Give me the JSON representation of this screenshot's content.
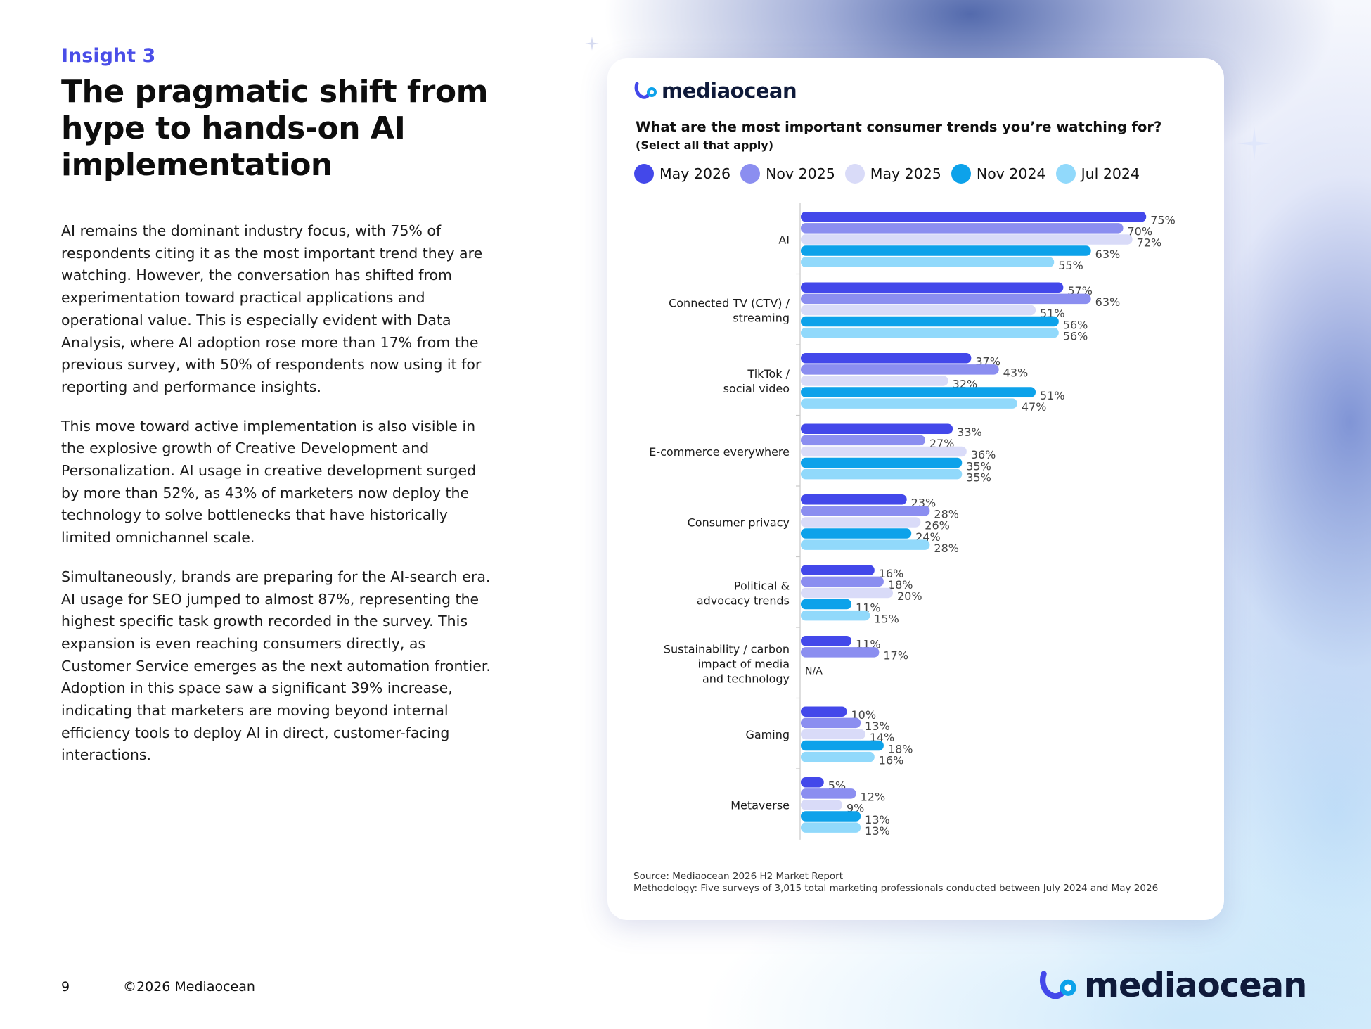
{
  "page": {
    "insight_label": "Insight 3",
    "headline": "The pragmatic shift from hype to hands-on AI implementation",
    "paragraphs": [
      "AI remains the dominant industry focus, with 75% of respondents citing it as the most important trend they are watching. However, the conversation has shifted from experimentation toward practical applications and operational value. This is especially evident with Data Analysis, where AI adoption rose more than 17% from the previous survey, with 50% of respondents now using it for reporting and performance insights.",
      "This move toward active implementation is also visible in the explosive growth of Creative Development and Personalization. AI usage in creative development surged by more than 52%, as 43% of marketers now deploy the technology to solve bottlenecks that have historically limited omnichannel scale.",
      "Simultaneously, brands are preparing for the AI-search era. AI usage for SEO jumped to almost 87%, representing the highest specific task growth recorded in the survey. This expansion is even reaching consumers directly, as Customer Service emerges as the next automation frontier. Adoption in this space saw a significant 39% increase, indicating that marketers are moving beyond internal efficiency tools to deploy AI in direct, customer-facing interactions."
    ],
    "page_number": "9",
    "copyright": "©2026 Mediaocean",
    "brand": "mediaocean"
  },
  "colors": {
    "may2026": "#4348ea",
    "nov2025": "#8b8ef0",
    "may2025": "#d9dbf8",
    "nov2024": "#0da2ea",
    "jul2024": "#91d9fb"
  },
  "chart_data": {
    "type": "bar",
    "orientation": "horizontal",
    "brand": "mediaocean",
    "title": "What are the most important consumer trends you’re watching for?",
    "subtitle": "(Select all that apply)",
    "categories": [
      "AI",
      "Connected TV (CTV) / streaming",
      "TikTok / social video",
      "E-commerce everywhere",
      "Consumer privacy",
      "Political & advocacy trends",
      "Sustainability / carbon impact of media and technology",
      "Gaming",
      "Metaverse"
    ],
    "category_lines": [
      [
        "AI"
      ],
      [
        "Connected TV (CTV) /",
        "streaming"
      ],
      [
        "TikTok /",
        "social video"
      ],
      [
        "E-commerce everywhere"
      ],
      [
        "Consumer privacy"
      ],
      [
        "Political &",
        "advocacy trends"
      ],
      [
        "Sustainability / carbon",
        "impact of media",
        "and technology"
      ],
      [
        "Gaming"
      ],
      [
        "Metaverse"
      ]
    ],
    "series": [
      {
        "name": "May 2026",
        "color": "#4348ea",
        "values": [
          75,
          57,
          37,
          33,
          23,
          16,
          11,
          10,
          5
        ]
      },
      {
        "name": "Nov 2025",
        "color": "#8b8ef0",
        "values": [
          70,
          63,
          43,
          27,
          28,
          18,
          17,
          13,
          12
        ]
      },
      {
        "name": "May 2025",
        "color": "#d9dbf8",
        "values": [
          72,
          51,
          32,
          36,
          26,
          20,
          null,
          14,
          9
        ]
      },
      {
        "name": "Nov 2024",
        "color": "#0da2ea",
        "values": [
          63,
          56,
          51,
          35,
          24,
          11,
          null,
          18,
          13
        ]
      },
      {
        "name": "Jul 2024",
        "color": "#91d9fb",
        "values": [
          55,
          56,
          47,
          35,
          28,
          15,
          null,
          16,
          13
        ]
      }
    ],
    "na_label": "N/A",
    "value_suffix": "%",
    "xlim": [
      0,
      100
    ],
    "legend_position": "top",
    "grid": false,
    "source": "Source: Mediaocean 2026 H2 Market Report",
    "methodology": "Methodology: Five surveys of 3,015 total marketing professionals conducted between July 2024 and May 2026"
  }
}
